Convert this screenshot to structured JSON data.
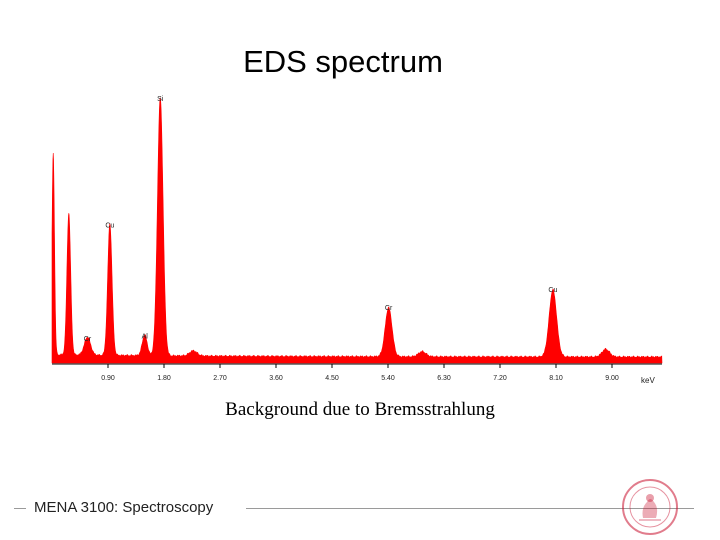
{
  "slide": {
    "title": "EDS spectrum",
    "caption": "Background due to Bremsstrahlung",
    "footer": "MENA 3100: Spectroscopy"
  },
  "colors": {
    "spectrum": "#ff0000",
    "axis": "#000000",
    "seal": "#c8102e"
  },
  "icons": {
    "seal": "university-seal-icon"
  },
  "chart_data": {
    "type": "area",
    "title": "",
    "xlabel": "keV",
    "ylabel": "",
    "xlim": [
      0,
      10.0
    ],
    "ylim": [
      0,
      100
    ],
    "grid": false,
    "x_ticks": [
      "0.90",
      "1.80",
      "2.70",
      "3.60",
      "4.50",
      "5.40",
      "6.30",
      "7.20",
      "8.10",
      "9.00"
    ],
    "x_tick_values": [
      0.9,
      1.8,
      2.7,
      3.6,
      4.5,
      5.4,
      6.3,
      7.2,
      8.1,
      9.0
    ],
    "background_level": 3,
    "peaks": [
      {
        "x": 0.02,
        "height": 78,
        "width": 0.02
      },
      {
        "x": 0.27,
        "height": 55,
        "width": 0.03
      },
      {
        "x": 0.57,
        "height": 7,
        "width": 0.05
      },
      {
        "x": 0.93,
        "height": 51,
        "width": 0.035
      },
      {
        "x": 1.49,
        "height": 8,
        "width": 0.04
      },
      {
        "x": 1.74,
        "height": 100,
        "width": 0.045
      },
      {
        "x": 2.27,
        "height": 2,
        "width": 0.06
      },
      {
        "x": 5.41,
        "height": 19,
        "width": 0.055
      },
      {
        "x": 5.95,
        "height": 2,
        "width": 0.06
      },
      {
        "x": 8.05,
        "height": 26,
        "width": 0.06
      },
      {
        "x": 8.9,
        "height": 3,
        "width": 0.06
      }
    ],
    "annotations": [
      {
        "text": "Si",
        "x": 1.74,
        "y": 100
      },
      {
        "text": "Cu",
        "x": 0.93,
        "y": 51
      },
      {
        "text": "Cr",
        "x": 0.57,
        "y": 7
      },
      {
        "text": "Al",
        "x": 1.49,
        "y": 8
      },
      {
        "text": "Cr",
        "x": 5.41,
        "y": 19
      },
      {
        "text": "Cu",
        "x": 8.05,
        "y": 26
      }
    ]
  }
}
